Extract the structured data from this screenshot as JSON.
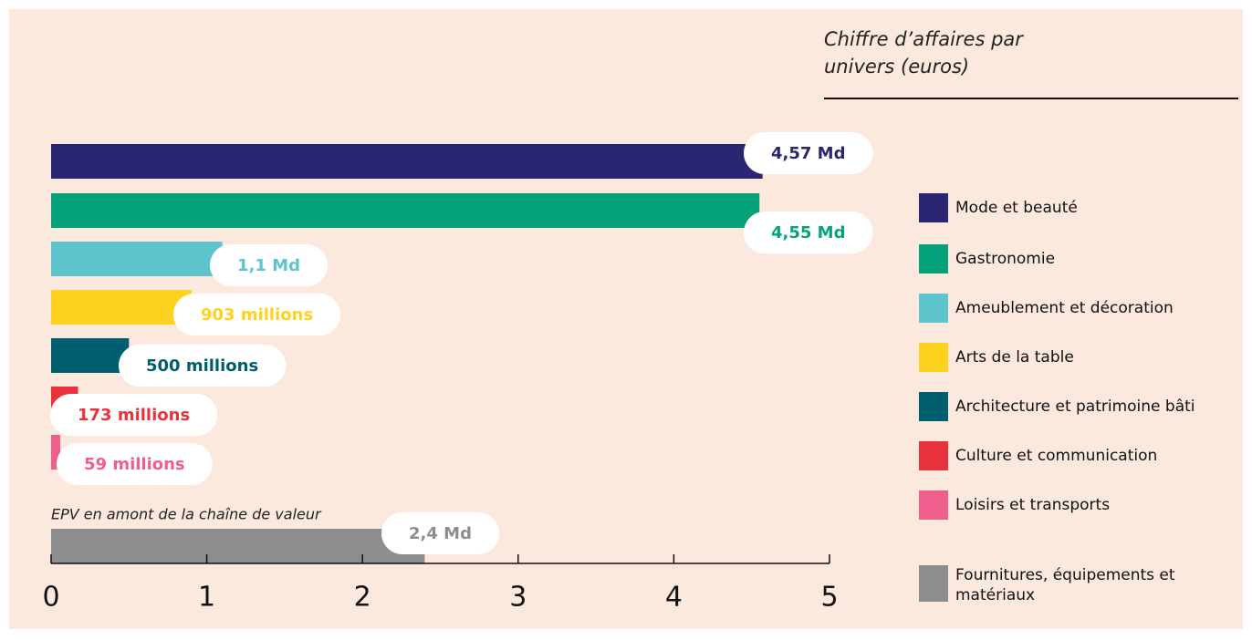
{
  "chart_data": {
    "type": "bar",
    "orientation": "horizontal",
    "title": "Chiffre d’affaires par univers (euros)",
    "annotation": "EPV en amont de la chaîne de valeur",
    "categories": [
      "Mode et beauté",
      "Gastronomie",
      "Ameublement et décoration",
      "Arts de la table",
      "Architecture et patrimoine bâti",
      "Culture et communication",
      "Loisirs et transports",
      "Fournitures, équipements et matériaux"
    ],
    "values": [
      4.57,
      4.55,
      1.1,
      0.903,
      0.5,
      0.173,
      0.059,
      2.4
    ],
    "value_labels": [
      "4,57 Md",
      "4,55 Md",
      "1,1 Md",
      "903 millions",
      "500 millions",
      "173 millions",
      "59 millions",
      "2,4 Md"
    ],
    "colors": [
      "#2b2672",
      "#06a27b",
      "#5ec4cd",
      "#fdd31f",
      "#005f6e",
      "#e8323c",
      "#ee5f8d",
      "#8c8e8e"
    ],
    "xlim": [
      0,
      5
    ],
    "xticks": [
      0,
      1,
      2,
      3,
      4,
      5
    ],
    "legend": "right"
  }
}
